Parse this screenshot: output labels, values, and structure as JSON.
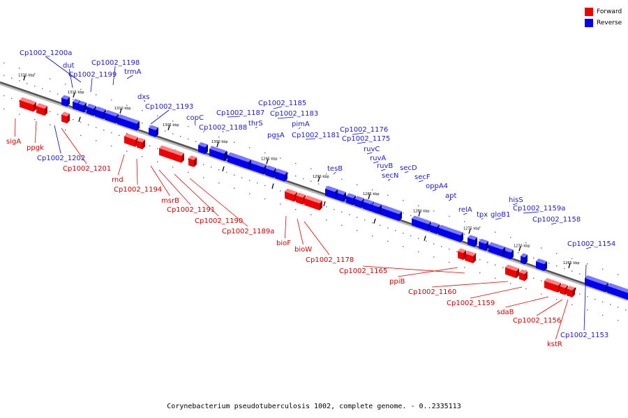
{
  "caption": "Corynebacterium pseudotuberculosis 1002, complete genome. - 0..2335113",
  "colors": {
    "forward": "#ee0000",
    "reverse": "#0000ee",
    "forward_label": "#cc0000",
    "reverse_label": "#1a1acc"
  },
  "legend": [
    {
      "name": "Forward",
      "color": "#ee0000"
    },
    {
      "name": "Reverse",
      "color": "#0000ee"
    }
  ],
  "ticks": [
    "1320 kbp",
    "1315 kbp",
    "1310 kbp",
    "1305 kbp",
    "1300 kbp",
    "1295 kbp",
    "1290 kbp",
    "1285 kbp",
    "1280 kbp",
    "1275 kbp",
    "1270 kbp",
    "1265 kbp"
  ],
  "genes": [
    {
      "name": "Cp1002_1200a",
      "strand": "reverse"
    },
    {
      "name": "dut",
      "strand": "reverse"
    },
    {
      "name": "Cp1002_1198",
      "strand": "reverse"
    },
    {
      "name": "Cp1002_1199",
      "strand": "reverse"
    },
    {
      "name": "trmA",
      "strand": "reverse"
    },
    {
      "name": "dxs",
      "strand": "reverse"
    },
    {
      "name": "Cp1002_1193",
      "strand": "reverse"
    },
    {
      "name": "copC",
      "strand": "reverse"
    },
    {
      "name": "Cp1002_1187",
      "strand": "reverse"
    },
    {
      "name": "Cp1002_1185",
      "strand": "reverse"
    },
    {
      "name": "Cp1002_1183",
      "strand": "reverse"
    },
    {
      "name": "thrS",
      "strand": "reverse"
    },
    {
      "name": "Cp1002_1188",
      "strand": "reverse"
    },
    {
      "name": "pimA",
      "strand": "reverse"
    },
    {
      "name": "pgsA",
      "strand": "reverse"
    },
    {
      "name": "Cp1002_1181",
      "strand": "reverse"
    },
    {
      "name": "Cp1002_1176",
      "strand": "reverse"
    },
    {
      "name": "Cp1002_1175",
      "strand": "reverse"
    },
    {
      "name": "ruvC",
      "strand": "reverse"
    },
    {
      "name": "ruvA",
      "strand": "reverse"
    },
    {
      "name": "tesB",
      "strand": "reverse"
    },
    {
      "name": "ruvB",
      "strand": "reverse"
    },
    {
      "name": "secD",
      "strand": "reverse"
    },
    {
      "name": "secN",
      "strand": "reverse"
    },
    {
      "name": "secF",
      "strand": "reverse"
    },
    {
      "name": "oppA4",
      "strand": "reverse"
    },
    {
      "name": "apt",
      "strand": "reverse"
    },
    {
      "name": "relA",
      "strand": "reverse"
    },
    {
      "name": "hisS",
      "strand": "reverse"
    },
    {
      "name": "tpx",
      "strand": "reverse"
    },
    {
      "name": "gloB1",
      "strand": "reverse"
    },
    {
      "name": "Cp1002_1159a",
      "strand": "reverse"
    },
    {
      "name": "Cp1002_1158",
      "strand": "reverse"
    },
    {
      "name": "Cp1002_1154",
      "strand": "reverse"
    },
    {
      "name": "Cp1002_1153",
      "strand": "reverse"
    },
    {
      "name": "Cp1002_1202",
      "strand": "reverse"
    },
    {
      "name": "sigA",
      "strand": "forward"
    },
    {
      "name": "ppgk",
      "strand": "forward"
    },
    {
      "name": "Cp1002_1201",
      "strand": "forward"
    },
    {
      "name": "rnd",
      "strand": "forward"
    },
    {
      "name": "Cp1002_1194",
      "strand": "forward"
    },
    {
      "name": "msrB",
      "strand": "forward"
    },
    {
      "name": "Cp1002_1191",
      "strand": "forward"
    },
    {
      "name": "Cp1002_1190",
      "strand": "forward"
    },
    {
      "name": "Cp1002_1189a",
      "strand": "forward"
    },
    {
      "name": "bioF",
      "strand": "forward"
    },
    {
      "name": "bioW",
      "strand": "forward"
    },
    {
      "name": "Cp1002_1178",
      "strand": "forward"
    },
    {
      "name": "Cp1002_1165",
      "strand": "forward"
    },
    {
      "name": "ppiB",
      "strand": "forward"
    },
    {
      "name": "Cp1002_1160",
      "strand": "forward"
    },
    {
      "name": "Cp1002_1159",
      "strand": "forward"
    },
    {
      "name": "sdaB",
      "strand": "forward"
    },
    {
      "name": "Cp1002_1156",
      "strand": "forward"
    },
    {
      "name": "kstR",
      "strand": "forward"
    }
  ]
}
